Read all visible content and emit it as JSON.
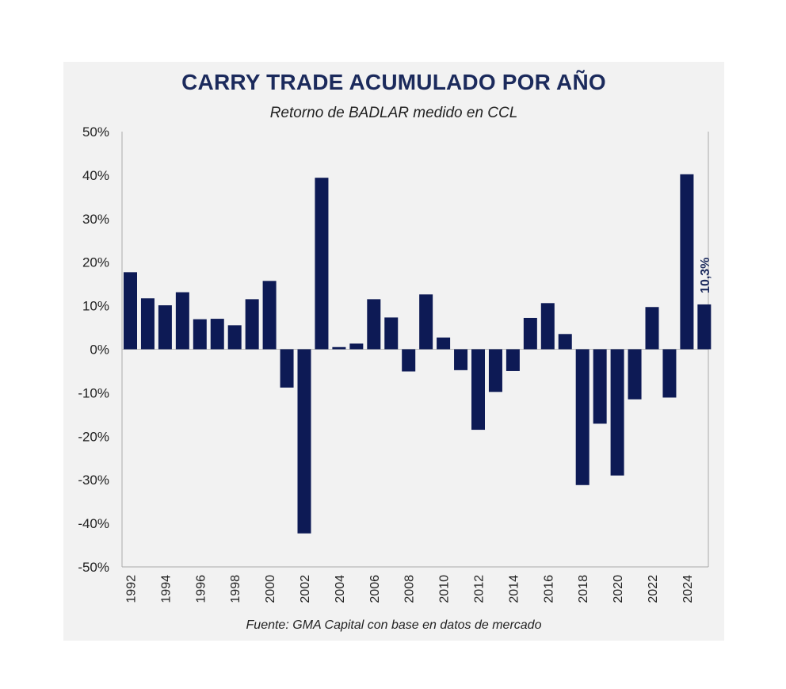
{
  "title": "CARRY TRADE ACUMULADO POR AÑO",
  "subtitle": "Retorno de BADLAR medido en CCL",
  "source": "Fuente: GMA Capital con base en datos de mercado",
  "colors": {
    "bar": "#0d1a55",
    "panel": "#f2f2f2",
    "axis": "#aaaaaa",
    "zero_line": "#bbbbbb"
  },
  "chart_data": {
    "type": "bar",
    "title": "CARRY TRADE ACUMULADO POR AÑO",
    "subtitle": "Retorno de BADLAR medido en CCL",
    "xlabel": "",
    "ylabel": "",
    "ylim": [
      -50,
      50
    ],
    "yticks": [
      50,
      40,
      30,
      20,
      10,
      0,
      -10,
      -20,
      -30,
      -40,
      -50
    ],
    "ytick_labels": [
      "50%",
      "40%",
      "30%",
      "20%",
      "10%",
      "0%",
      "-10%",
      "-20%",
      "-30%",
      "-40%",
      "-50%"
    ],
    "categories": [
      1992,
      1993,
      1994,
      1995,
      1996,
      1997,
      1998,
      1999,
      2000,
      2001,
      2002,
      2003,
      2004,
      2005,
      2006,
      2007,
      2008,
      2009,
      2010,
      2011,
      2012,
      2013,
      2014,
      2015,
      2016,
      2017,
      2018,
      2019,
      2020,
      2021,
      2022,
      2023,
      2024,
      2025
    ],
    "xtick_labels": [
      "1992",
      "1994",
      "1996",
      "1998",
      "2000",
      "2002",
      "2004",
      "2006",
      "2008",
      "2010",
      "2012",
      "2014",
      "2016",
      "2018",
      "2020",
      "2022",
      "2024"
    ],
    "values": [
      17.7,
      11.7,
      10.1,
      13.1,
      6.9,
      7.0,
      5.5,
      11.5,
      15.7,
      -8.8,
      -42.3,
      39.4,
      0.5,
      1.3,
      11.5,
      7.3,
      -5.1,
      12.6,
      2.7,
      -4.8,
      -18.5,
      -9.8,
      -5.0,
      7.2,
      10.6,
      3.5,
      -31.2,
      -17.1,
      -29.0,
      -11.5,
      9.7,
      -11.1,
      40.2,
      10.3
    ],
    "annotation": {
      "category": 2025,
      "text": "10,3%"
    },
    "grid": false,
    "legend": "none"
  }
}
